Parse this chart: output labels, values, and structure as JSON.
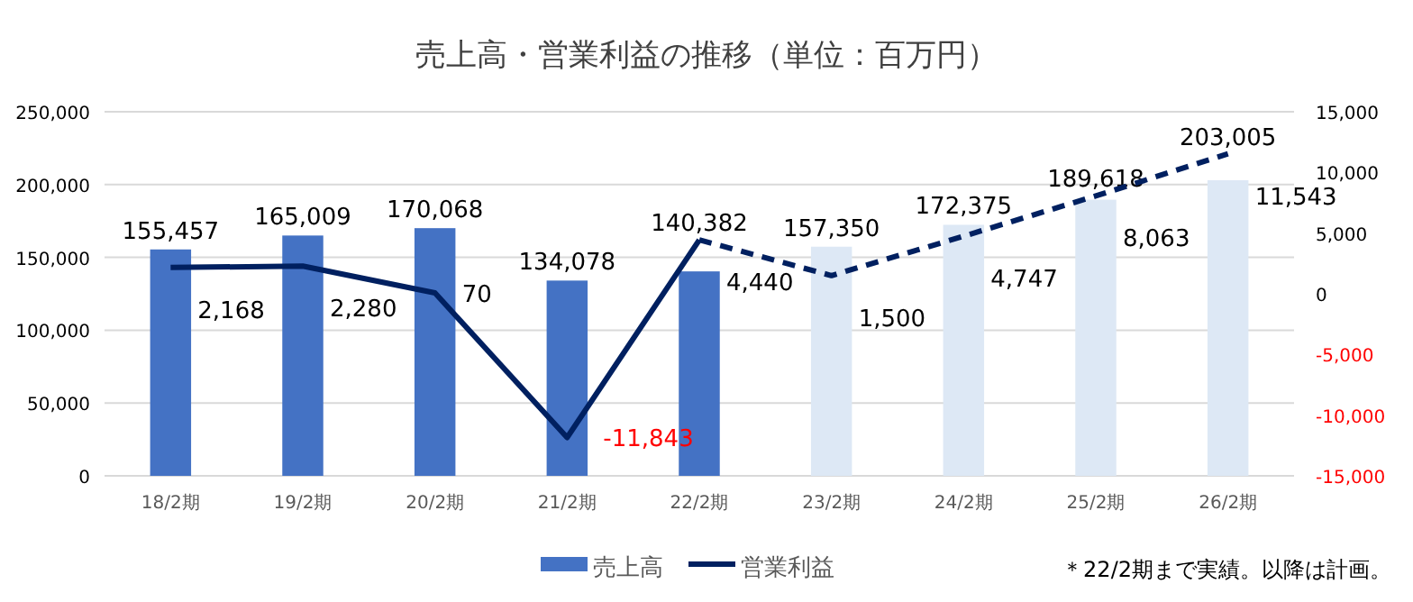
{
  "chart_data": {
    "type": "bar",
    "title": "売上高・営業利益の推移（単位：百万円）",
    "categories": [
      "18/2期",
      "19/2期",
      "20/2期",
      "21/2期",
      "22/2期",
      "23/2期",
      "24/2期",
      "25/2期",
      "26/2期"
    ],
    "series": [
      {
        "name": "売上高",
        "colors": [
          "#4472c4",
          "#4472c4",
          "#4472c4",
          "#4472c4",
          "#4472c4",
          "#dde8f5",
          "#dde8f5",
          "#dde8f5",
          "#dde8f5"
        ],
        "color": "#4472c4",
        "values": [
          155457,
          165009,
          170068,
          134078,
          140382,
          157350,
          172375,
          189618,
          203005
        ],
        "value_labels": [
          "155,457",
          "165,009",
          "170,068",
          "134,078",
          "140,382",
          "157,350",
          "172,375",
          "189,618",
          "203,005"
        ]
      },
      {
        "name": "営業利益",
        "type": "line",
        "axis": "y2",
        "color": "#002060",
        "line_style": "solid",
        "values": [
          2168,
          2280,
          70,
          -11843,
          4440,
          null,
          null,
          null,
          null
        ],
        "value_labels": [
          "2,168",
          "2,280",
          "70",
          "-11,843",
          "4,440",
          null,
          null,
          null,
          null
        ]
      },
      {
        "type": "line",
        "axis": "y2",
        "color": "#002060",
        "line_style": "dashed",
        "values": [
          null,
          null,
          null,
          null,
          4440,
          1500,
          4747,
          8063,
          11543
        ],
        "value_labels": [
          null,
          null,
          null,
          null,
          null,
          "1,500",
          "4,747",
          "8,063",
          "11,543"
        ]
      }
    ],
    "ylim": [
      0,
      250000
    ],
    "yticks": [
      0,
      {
        "value": 50000,
        "label": "50,000"
      },
      {
        "value": 100000,
        "label": "100,000"
      },
      {
        "value": 150000,
        "label": "150,000"
      },
      {
        "value": 200000,
        "label": "200,000"
      },
      {
        "value": 250000,
        "label": "250,000"
      }
    ],
    "y2lim": [
      -15000,
      15000
    ],
    "y2ticks": [
      {
        "value": -15000,
        "label": "-15,000"
      },
      {
        "value": -10000,
        "label": "-10,000"
      },
      {
        "value": -5000,
        "label": "-5,000"
      },
      0,
      {
        "value": 5000,
        "label": "5,000"
      },
      {
        "value": 10000,
        "label": "10,000"
      },
      {
        "value": 15000,
        "label": "15,000"
      }
    ],
    "grid": "y",
    "legend": "bottom",
    "marker": "none",
    "annotations": [
      "＊22/2期まで実績。以降は計画。"
    ]
  }
}
